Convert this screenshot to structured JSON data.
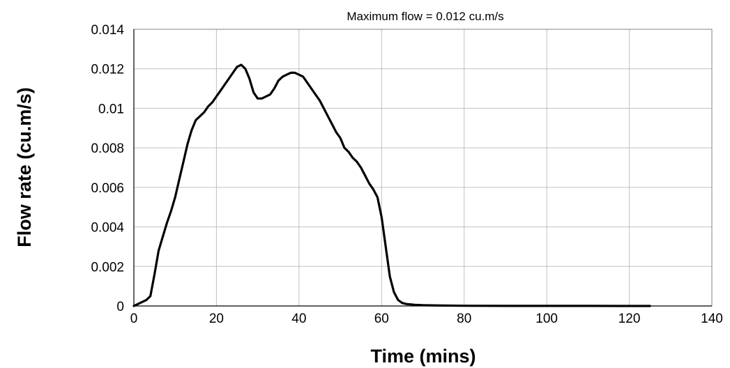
{
  "chart_data": {
    "type": "line",
    "title": "Maximum flow = 0.012 cu.m/s",
    "xlabel": "Time (mins)",
    "ylabel": "Flow rate (cu.m/s)",
    "xlim": [
      0,
      140
    ],
    "ylim": [
      0,
      0.014
    ],
    "x_ticks": [
      "0",
      "20",
      "40",
      "60",
      "80",
      "100",
      "120",
      "140"
    ],
    "y_ticks": [
      "0",
      "0.002",
      "0.004",
      "0.006",
      "0.008",
      "0.01",
      "0.012",
      "0.014"
    ],
    "grid": true,
    "colors": {
      "series": "#000000",
      "grid": "#c0c0c0"
    },
    "series": [
      {
        "x": [
          0,
          1,
          2,
          3,
          4,
          5,
          6,
          7,
          8,
          9,
          10,
          11,
          12,
          13,
          14,
          15,
          16,
          17,
          18,
          19,
          20,
          21,
          22,
          23,
          24,
          25,
          26,
          27,
          28,
          29,
          30,
          31,
          32,
          33,
          34,
          35,
          36,
          37,
          38,
          39,
          40,
          41,
          42,
          43,
          44,
          45,
          46,
          47,
          48,
          49,
          50,
          51,
          52,
          53,
          54,
          55,
          56,
          57,
          58,
          59,
          60,
          61,
          62,
          63,
          64,
          65,
          66,
          67,
          68,
          70,
          72,
          75,
          80,
          90,
          100,
          110,
          120,
          125
        ],
        "y": [
          0,
          0.0001,
          0.0002,
          0.0003,
          0.0005,
          0.0016,
          0.0028,
          0.0035,
          0.0042,
          0.0048,
          0.0055,
          0.0064,
          0.0073,
          0.0082,
          0.0089,
          0.0094,
          0.0096,
          0.0098,
          0.0101,
          0.0103,
          0.0106,
          0.0109,
          0.0112,
          0.0115,
          0.0118,
          0.0121,
          0.0122,
          0.012,
          0.0115,
          0.0108,
          0.0105,
          0.0105,
          0.0106,
          0.0107,
          0.011,
          0.0114,
          0.0116,
          0.0117,
          0.0118,
          0.0118,
          0.0117,
          0.0116,
          0.0113,
          0.011,
          0.0107,
          0.0104,
          0.01,
          0.0096,
          0.0092,
          0.0088,
          0.0085,
          0.008,
          0.0078,
          0.0075,
          0.0073,
          0.007,
          0.0066,
          0.0062,
          0.0059,
          0.0055,
          0.0045,
          0.003,
          0.0015,
          0.0007,
          0.0003,
          0.00015,
          0.0001,
          8e-05,
          6e-05,
          4e-05,
          3e-05,
          2e-05,
          1e-05,
          5e-06,
          3e-06,
          2e-06,
          1e-06,
          0
        ]
      }
    ]
  }
}
